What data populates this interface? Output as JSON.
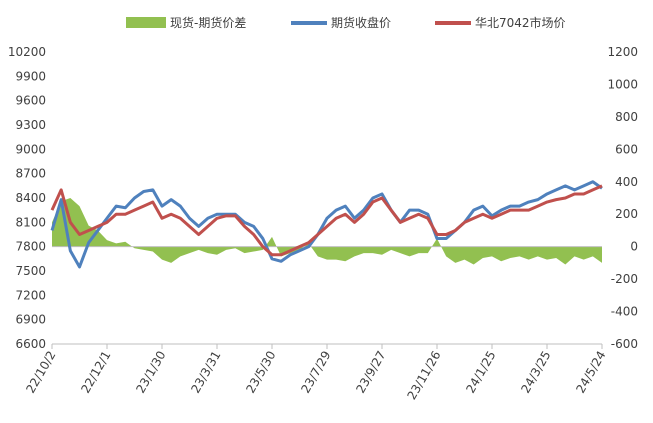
{
  "chart_data": {
    "type": "line",
    "legend_position": "top",
    "grid": false,
    "series": [
      {
        "name": "现货-期货价差",
        "type": "area",
        "axis": "right",
        "color": "#92c050"
      },
      {
        "name": "期货收盘价",
        "type": "line",
        "axis": "left",
        "color": "#4f81bd"
      },
      {
        "name": "华北7042市场价",
        "type": "line",
        "axis": "left",
        "color": "#c0504d"
      }
    ],
    "x_ticks": [
      "22/10/2",
      "22/12/1",
      "23/1/30",
      "23/3/31",
      "23/5/30",
      "23/7/29",
      "23/9/27",
      "23/11/26",
      "24/1/25",
      "24/3/25",
      "24/5/24"
    ],
    "y_left": {
      "min": 6600,
      "max": 10200,
      "ticks": [
        "6600",
        "6900",
        "7200",
        "7500",
        "7800",
        "8100",
        "8400",
        "8700",
        "9000",
        "9300",
        "9600",
        "9900",
        "10200"
      ]
    },
    "y_right": {
      "min": -600,
      "max": 1200,
      "ticks": [
        "-600",
        "-400",
        "-200",
        "0",
        "200",
        "400",
        "600",
        "800",
        "1000",
        "1200"
      ]
    },
    "x": [
      "22/10/2",
      "22/10/12",
      "22/10/22",
      "22/11/1",
      "22/11/11",
      "22/11/21",
      "22/12/1",
      "22/12/11",
      "22/12/21",
      "22/12/31",
      "23/1/10",
      "23/1/20",
      "23/1/30",
      "23/2/9",
      "23/2/19",
      "23/3/1",
      "23/3/11",
      "23/3/21",
      "23/3/31",
      "23/4/10",
      "23/4/20",
      "23/4/30",
      "23/5/10",
      "23/5/20",
      "23/5/30",
      "23/6/9",
      "23/6/19",
      "23/6/29",
      "23/7/9",
      "23/7/19",
      "23/7/29",
      "23/8/8",
      "23/8/18",
      "23/8/28",
      "23/9/7",
      "23/9/17",
      "23/9/27",
      "23/10/7",
      "23/10/17",
      "23/10/27",
      "23/11/6",
      "23/11/16",
      "23/11/26",
      "23/12/6",
      "23/12/16",
      "23/12/26",
      "24/1/5",
      "24/1/15",
      "24/1/25",
      "24/2/4",
      "24/2/14",
      "24/2/24",
      "24/3/5",
      "24/3/15",
      "24/3/25",
      "24/4/4",
      "24/4/14",
      "24/4/24",
      "24/5/4",
      "24/5/14",
      "24/5/24"
    ],
    "futures": [
      8000,
      8380,
      7750,
      7550,
      7850,
      8000,
      8150,
      8300,
      8280,
      8400,
      8480,
      8500,
      8300,
      8380,
      8300,
      8150,
      8050,
      8150,
      8200,
      8200,
      8200,
      8100,
      8050,
      7900,
      7650,
      7620,
      7700,
      7750,
      7800,
      7950,
      8150,
      8250,
      8300,
      8150,
      8250,
      8400,
      8450,
      8250,
      8100,
      8250,
      8250,
      8200,
      7900,
      7900,
      8000,
      8100,
      8250,
      8300,
      8180,
      8250,
      8300,
      8300,
      8350,
      8380,
      8450,
      8500,
      8550,
      8500,
      8550,
      8600,
      8520
    ],
    "spot": [
      8250,
      8500,
      8100,
      7950,
      8000,
      8050,
      8100,
      8200,
      8200,
      8250,
      8300,
      8350,
      8150,
      8200,
      8150,
      8050,
      7950,
      8050,
      8150,
      8180,
      8180,
      8050,
      7950,
      7800,
      7700,
      7700,
      7750,
      7800,
      7850,
      7950,
      8050,
      8150,
      8200,
      8100,
      8200,
      8350,
      8400,
      8250,
      8100,
      8150,
      8200,
      8150,
      7950,
      7950,
      8000,
      8100,
      8150,
      8200,
      8150,
      8200,
      8250,
      8250,
      8250,
      8300,
      8350,
      8380,
      8400,
      8450,
      8450,
      8500,
      8550
    ],
    "spread": [
      150,
      280,
      300,
      250,
      130,
      100,
      40,
      20,
      30,
      -10,
      -20,
      -30,
      -80,
      -100,
      -60,
      -40,
      -20,
      -40,
      -50,
      -20,
      -10,
      -40,
      -30,
      -20,
      60,
      -60,
      -40,
      -20,
      20,
      -60,
      -80,
      -80,
      -90,
      -60,
      -40,
      -40,
      -50,
      -20,
      -40,
      -60,
      -40,
      -40,
      50,
      -60,
      -100,
      -80,
      -110,
      -70,
      -60,
      -90,
      -70,
      -60,
      -80,
      -60,
      -80,
      -70,
      -110,
      -60,
      -80,
      -60,
      -100
    ]
  }
}
